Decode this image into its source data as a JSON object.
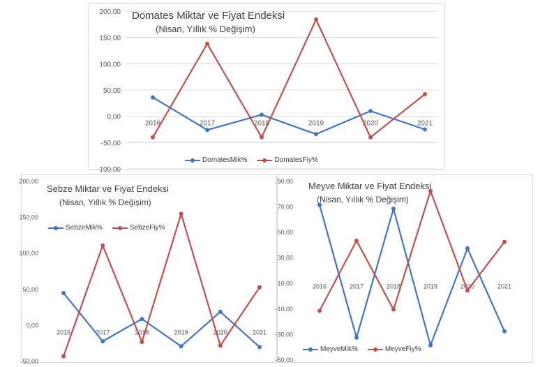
{
  "colors": {
    "series_a": "#4472c4",
    "series_b": "#c0504d",
    "axis_text": "#595959",
    "grid": "#d9d9d9"
  },
  "chart_data": [
    {
      "type": "line",
      "title": "Domates Miktar ve Fiyat Endeksi",
      "subtitle": "(Nisan, Yıllık % Değişim)",
      "categories": [
        "2016",
        "2017",
        "2018",
        "2019",
        "2020",
        "2021"
      ],
      "series": [
        {
          "name": "DomatesMik%",
          "values": [
            36,
            -26,
            3,
            -34,
            10,
            -25
          ]
        },
        {
          "name": "DomatesFiy%",
          "values": [
            -40,
            138,
            -40,
            184,
            -40,
            42
          ]
        }
      ],
      "ylim": [
        -100,
        200
      ],
      "yticks": [
        "200,00",
        "150,00",
        "100,00",
        "50,00",
        "0,00",
        "-50,00",
        "-100,00"
      ],
      "grid": true,
      "legend": "bottom"
    },
    {
      "type": "line",
      "title": "Sebze Miktar ve Fiyat Endeksi",
      "subtitle": "(Nisan, Yıllık % Değişim)",
      "categories": [
        "2016",
        "2017",
        "2018",
        "2019",
        "2020",
        "2021"
      ],
      "series": [
        {
          "name": "SebzeMik%",
          "values": [
            44,
            -23,
            8,
            -30,
            18,
            -31
          ]
        },
        {
          "name": "SebzeFiy%",
          "values": [
            -44,
            110,
            -24,
            154,
            -29,
            52
          ]
        }
      ],
      "ylim": [
        -50,
        200
      ],
      "yticks": [
        "200,00",
        "150,00",
        "100,00",
        "50,00",
        "0,00",
        "-50,00"
      ],
      "grid": false,
      "legend": "top-left"
    },
    {
      "type": "line",
      "title": "Meyve Miktar ve Fiyat Endeksi",
      "subtitle": "(Nisan, Yıllık % Değişim)",
      "categories": [
        "2016",
        "2017",
        "2018",
        "2019",
        "2020",
        "2021"
      ],
      "series": [
        {
          "name": "MeyveMik%",
          "values": [
            71,
            -33,
            68,
            -39,
            37,
            -28
          ]
        },
        {
          "name": "MeyveFiy%",
          "values": [
            -12,
            43,
            -11,
            82,
            4,
            42
          ]
        }
      ],
      "ylim": [
        -50,
        90
      ],
      "yticks": [
        "90,00",
        "70,00",
        "50,00",
        "30,00",
        "10,00",
        "-10,00",
        "-30,00",
        "-50,00"
      ],
      "grid": false,
      "legend": "bottom-left"
    }
  ]
}
